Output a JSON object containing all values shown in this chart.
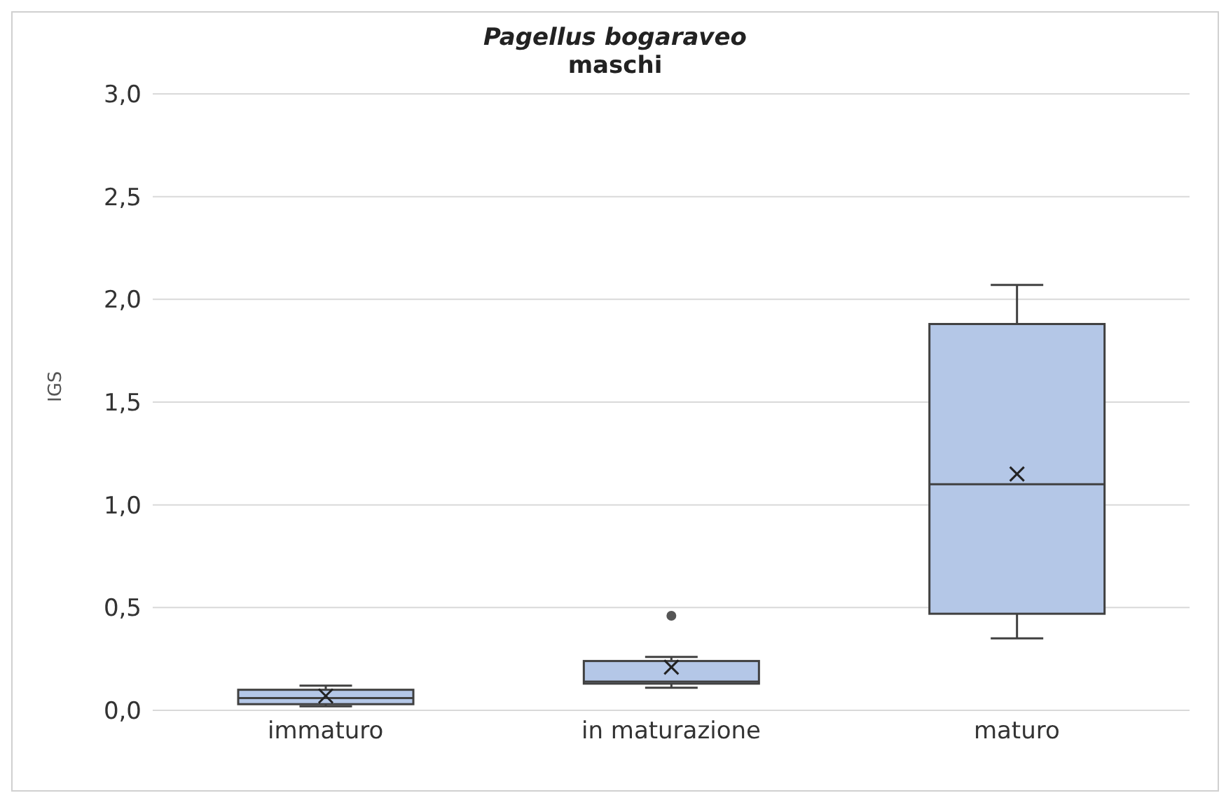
{
  "chart_data": {
    "type": "box",
    "title": "Pagellus bogaraveo",
    "subtitle": "maschi",
    "ylabel": "IGS",
    "categories": [
      "immaturo",
      "in maturazione",
      "maturo"
    ],
    "boxes": [
      {
        "low": 0.02,
        "q1": 0.03,
        "median": 0.06,
        "q3": 0.1,
        "high": 0.12,
        "mean": 0.07
      },
      {
        "low": 0.11,
        "q1": 0.13,
        "median": 0.14,
        "q3": 0.24,
        "high": 0.26,
        "mean": 0.21,
        "outliers": [
          0.46
        ]
      },
      {
        "low": 0.35,
        "q1": 0.47,
        "median": 1.1,
        "q3": 1.88,
        "high": 2.07,
        "mean": 1.15
      }
    ],
    "color": "#b4c7e7",
    "ylim": [
      0,
      3
    ],
    "yticks": [
      {
        "value": 0,
        "label": "0,0"
      },
      {
        "value": 0.5,
        "label": "0,5"
      },
      {
        "value": 1,
        "label": "1,0"
      },
      {
        "value": 1.5,
        "label": "1,5"
      },
      {
        "value": 2,
        "label": "2,0"
      },
      {
        "value": 2.5,
        "label": "2,5"
      },
      {
        "value": 3,
        "label": "3,0"
      }
    ],
    "grid": "y",
    "legend": false
  }
}
